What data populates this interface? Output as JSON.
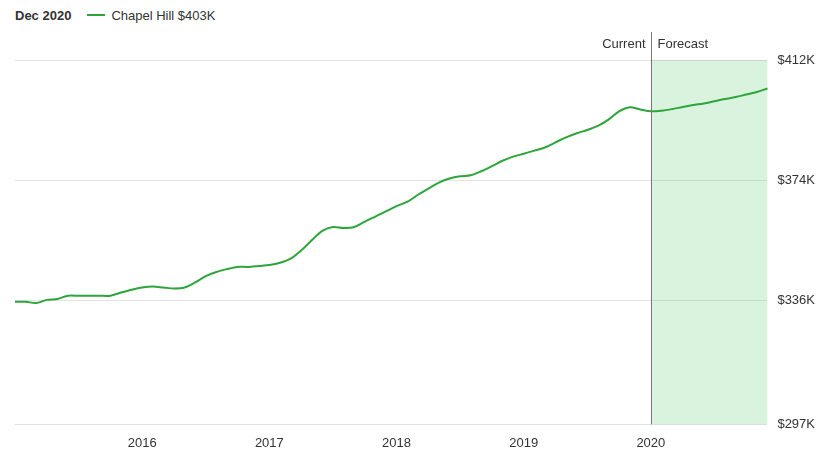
{
  "chart_data": {
    "type": "line",
    "title": "Dec 2020",
    "categories": [
      null,
      null,
      null,
      null,
      null,
      null,
      null,
      null,
      null,
      null,
      null,
      null,
      "2016",
      null,
      null,
      null,
      null,
      null,
      null,
      null,
      null,
      null,
      null,
      null,
      "2017",
      null,
      null,
      null,
      null,
      null,
      null,
      null,
      null,
      null,
      null,
      null,
      "2018",
      null,
      null,
      null,
      null,
      null,
      null,
      null,
      null,
      null,
      null,
      null,
      "2019",
      null,
      null,
      null,
      null,
      null,
      null,
      null,
      null,
      null,
      null,
      null,
      "2020",
      null,
      null,
      null,
      null,
      null,
      null,
      null,
      null,
      null,
      null,
      null
    ],
    "series": [
      {
        "name": "Chapel Hill $403K",
        "color": "#2ea53a",
        "values": [
          335.7,
          335.7,
          335.3,
          336.3,
          336.6,
          337.6,
          337.6,
          337.6,
          337.6,
          337.6,
          338.6,
          339.5,
          340.2,
          340.5,
          340.2,
          339.9,
          340.2,
          341.8,
          343.8,
          345.1,
          346.0,
          346.7,
          346.7,
          347.0,
          347.3,
          348.0,
          349.3,
          351.9,
          355.1,
          358.1,
          359.3,
          359.0,
          359.3,
          361.0,
          362.6,
          364.2,
          365.9,
          367.2,
          369.4,
          371.4,
          373.3,
          374.6,
          375.3,
          375.6,
          376.9,
          378.5,
          380.2,
          381.5,
          382.4,
          383.4,
          384.4,
          386.0,
          387.6,
          388.9,
          389.9,
          391.2,
          393.2,
          395.8,
          397.1,
          396.4,
          395.8,
          396.0,
          396.5,
          397.2,
          397.8,
          398.3,
          399.0,
          399.7,
          400.3,
          401.1,
          401.9,
          403.0
        ]
      }
    ],
    "ylim": [
      297,
      412
    ],
    "yticks": [
      {
        "value": 297,
        "label": "$297K"
      },
      {
        "value": 336,
        "label": "$336K"
      },
      {
        "value": 374,
        "label": "$374K"
      },
      {
        "value": 412,
        "label": "$412K"
      }
    ],
    "grid": true,
    "annotations": [
      {
        "text": "Current",
        "x": "2020",
        "side": "left"
      },
      {
        "text": "Forecast",
        "x": "2020",
        "side": "right"
      }
    ]
  }
}
